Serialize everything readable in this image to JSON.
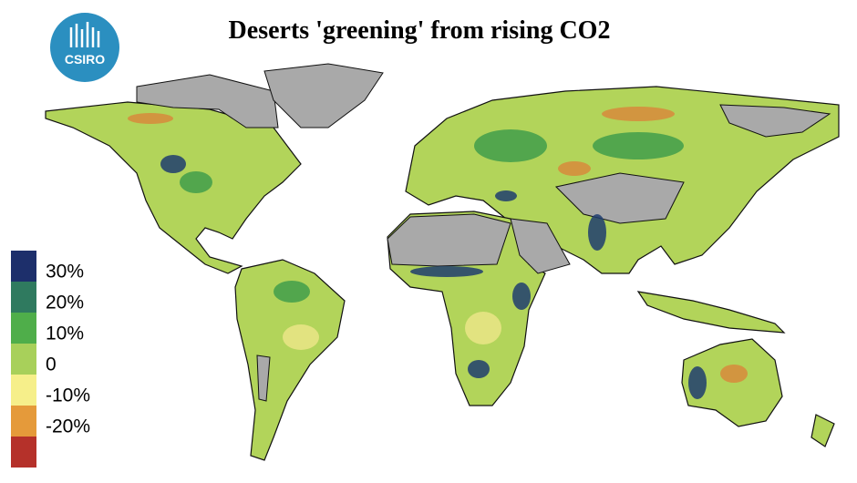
{
  "header": {
    "title": "Deserts 'greening' from rising CO2",
    "logo": "CSIRO"
  },
  "legend": {
    "labels": [
      "30%",
      "20%",
      "10%",
      "0",
      "-10%",
      "-20%"
    ],
    "colors": [
      "#1d2f6b",
      "#2f7a5f",
      "#4fae4a",
      "#a8d05a",
      "#f6ef8a",
      "#e59a3a",
      "#b5312a"
    ]
  }
}
